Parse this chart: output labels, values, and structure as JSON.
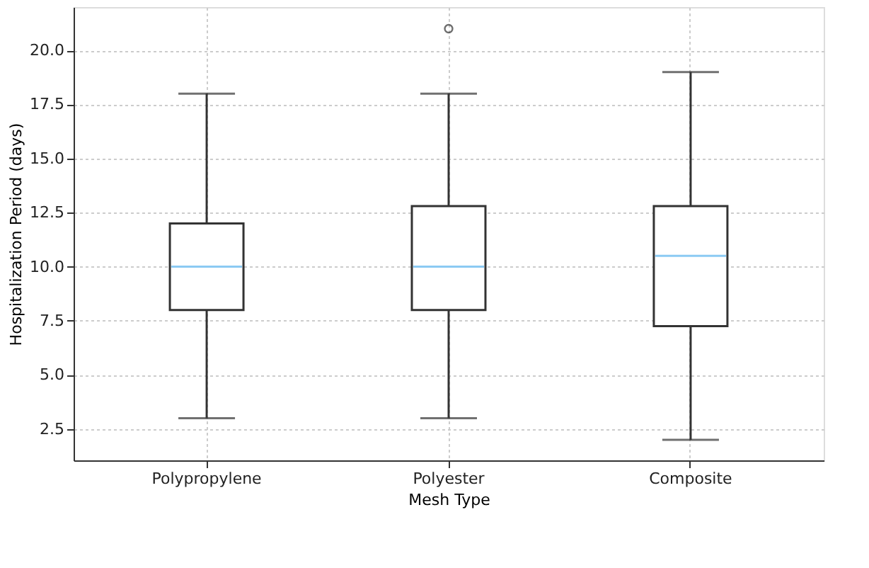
{
  "chart_data": {
    "type": "box",
    "xlabel": "Mesh Type",
    "ylabel": "Hospitalization Period (days)",
    "categories": [
      "Polypropylene",
      "Polyester",
      "Composite"
    ],
    "boxes": [
      {
        "low": 3,
        "q1": 8,
        "median": 10,
        "q3": 12,
        "high": 18
      },
      {
        "low": 3,
        "q1": 8,
        "median": 10,
        "q3": 12.8,
        "high": 18,
        "outliers": [
          21
        ]
      },
      {
        "low": 2,
        "q1": 7.25,
        "median": 10.5,
        "q3": 12.8,
        "high": 19
      }
    ],
    "ylim": [
      1.05,
      22
    ],
    "yticks": [
      2.5,
      {
        "value": 5,
        "label": "5.0"
      },
      7.5,
      {
        "value": 10,
        "label": "10.0"
      },
      12.5,
      {
        "value": 15,
        "label": "15.0"
      },
      17.5,
      {
        "value": 20,
        "label": "20.0"
      }
    ],
    "grid": true
  }
}
